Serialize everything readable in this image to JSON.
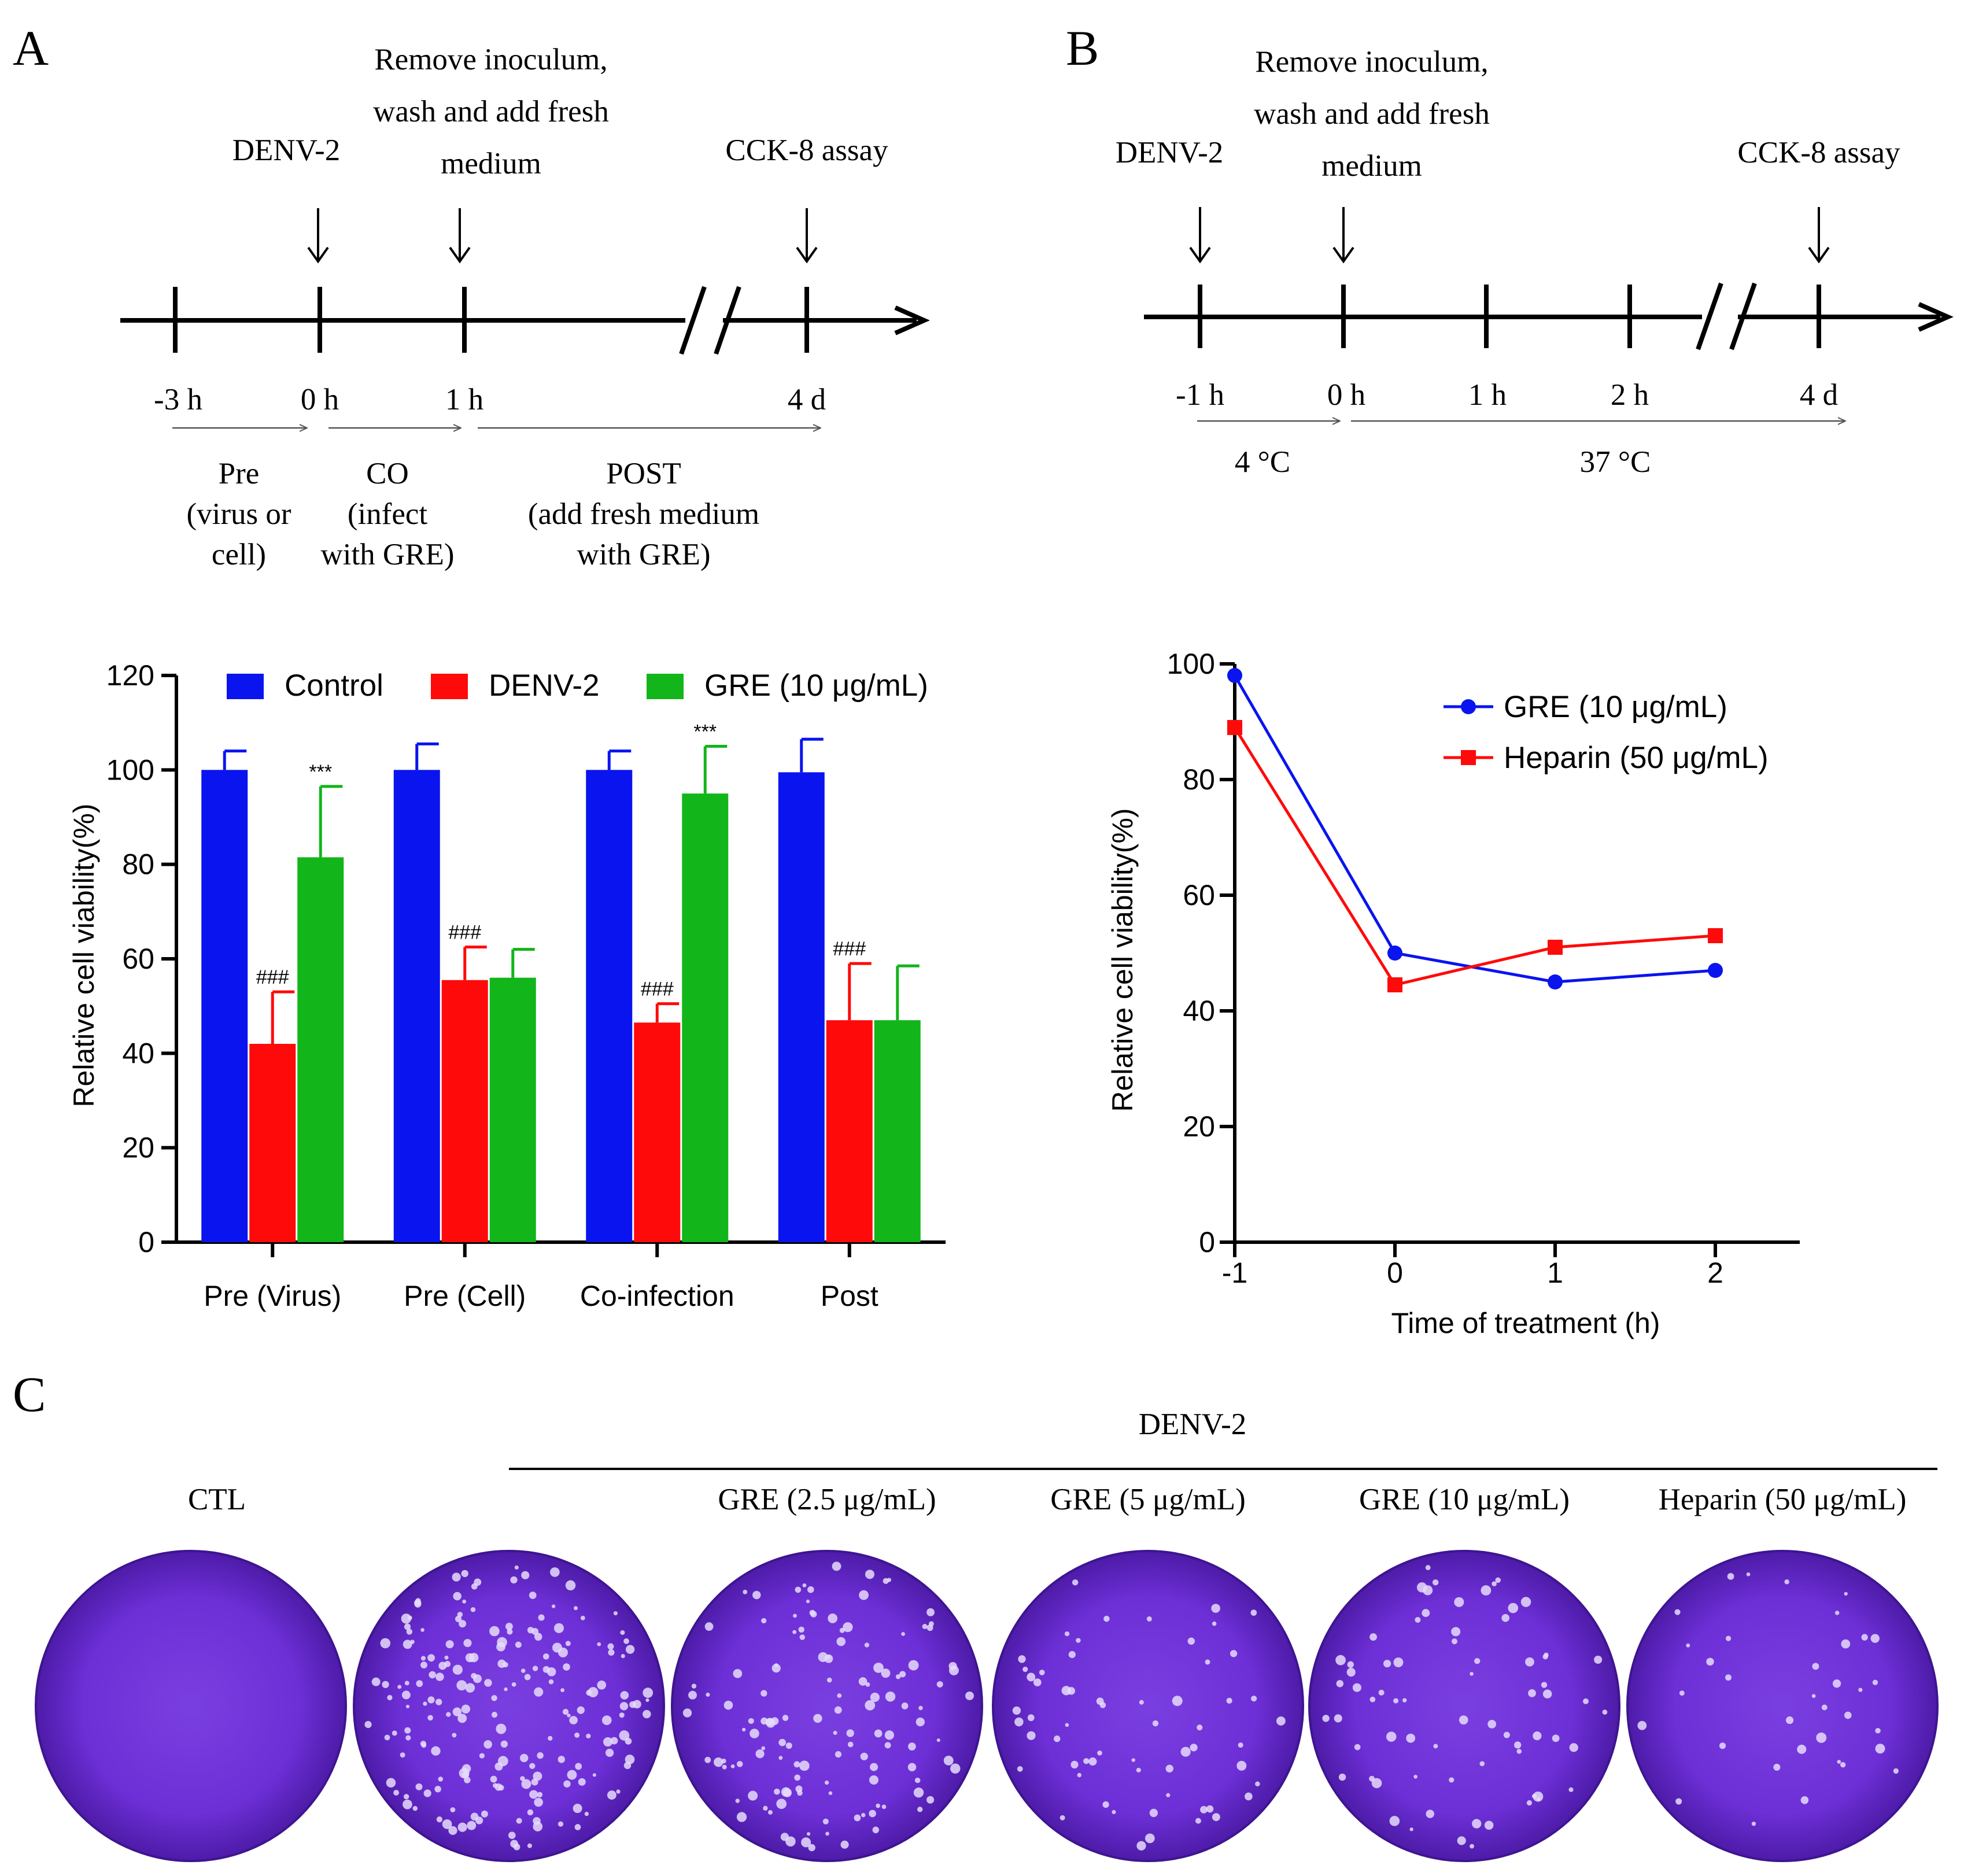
{
  "panelA": {
    "label": "A",
    "timeline": {
      "events": [
        {
          "text": "DENV-2"
        },
        {
          "lines": [
            "Remove inoculum,",
            "wash and add fresh",
            "medium"
          ]
        },
        {
          "text": "CCK-8 assay"
        }
      ],
      "ticks": [
        "-3 h",
        "0 h",
        "1 h",
        "4 d"
      ],
      "phases": [
        {
          "lines": [
            "Pre",
            "(virus or",
            "cell)"
          ]
        },
        {
          "lines": [
            "CO",
            "(infect",
            "with GRE)"
          ]
        },
        {
          "lines": [
            "POST",
            "(add fresh medium",
            "with GRE)"
          ]
        }
      ]
    }
  },
  "panelB": {
    "label": "B",
    "timeline": {
      "events": [
        {
          "text": "DENV-2"
        },
        {
          "lines": [
            "Remove inoculum,",
            "wash and add fresh",
            "medium"
          ]
        },
        {
          "text": "CCK-8 assay"
        }
      ],
      "ticks": [
        "-1 h",
        "0 h",
        "1 h",
        "2 h",
        "4 d"
      ],
      "phases": [
        {
          "text": "4 °C"
        },
        {
          "text": "37 °C"
        }
      ]
    }
  },
  "panelC": {
    "label": "C",
    "group_label": "DENV-2",
    "wells": [
      {
        "label": "CTL",
        "plaques": 0
      },
      {
        "label": "",
        "plaques": 200
      },
      {
        "label": "GRE (2.5 μg/mL)",
        "plaques": 130
      },
      {
        "label": "GRE (5 μg/mL)",
        "plaques": 60
      },
      {
        "label": "GRE (10 μg/mL)",
        "plaques": 70
      },
      {
        "label": "Heparin (50 μg/mL)",
        "plaques": 35
      }
    ]
  },
  "chart_data": [
    {
      "type": "bar",
      "categories": [
        "Pre (Virus)",
        "Pre (Cell)",
        "Co-infection",
        "Post"
      ],
      "series": [
        {
          "name": "Control",
          "color": "#0a14ee",
          "values": [
            100,
            100,
            100,
            99.5
          ],
          "errors": [
            4,
            5.5,
            4,
            7
          ],
          "annotations": [
            "",
            "",
            "",
            ""
          ]
        },
        {
          "name": "DENV-2",
          "color": "#ff0a0a",
          "values": [
            42,
            55.5,
            46.5,
            47
          ],
          "errors": [
            11,
            7,
            4,
            12
          ],
          "annotations": [
            "###",
            "###",
            "###",
            "###"
          ]
        },
        {
          "name": "GRE (10 μg/mL)",
          "color": "#12b51a",
          "values": [
            81.5,
            56,
            95,
            47
          ],
          "errors": [
            15,
            6,
            10,
            11.5
          ],
          "annotations": [
            "***",
            "",
            "***",
            ""
          ]
        }
      ],
      "title": "",
      "xlabel": "",
      "ylabel": "Relative cell viability(%)",
      "ylim": [
        0,
        120
      ],
      "yticks": [
        0,
        20,
        40,
        60,
        80,
        100,
        120
      ],
      "legend": "top"
    },
    {
      "type": "line",
      "x": [
        -1,
        0,
        1,
        2
      ],
      "xtick_labels": [
        "-1",
        "0",
        "1",
        "2"
      ],
      "series": [
        {
          "name": "GRE (10 μg/mL)",
          "color": "#0a14ee",
          "marker": "circle",
          "values": [
            98,
            50,
            45,
            47
          ]
        },
        {
          "name": "Heparin (50 μg/mL)",
          "color": "#ff0a0a",
          "marker": "square",
          "values": [
            89,
            44.5,
            51,
            53
          ]
        }
      ],
      "title": "",
      "xlabel": "Time of treatment (h)",
      "ylabel": "Relative cell viability(%)",
      "ylim": [
        0,
        100
      ],
      "yticks": [
        0,
        20,
        40,
        60,
        80,
        100
      ],
      "legend": "top-right"
    }
  ]
}
